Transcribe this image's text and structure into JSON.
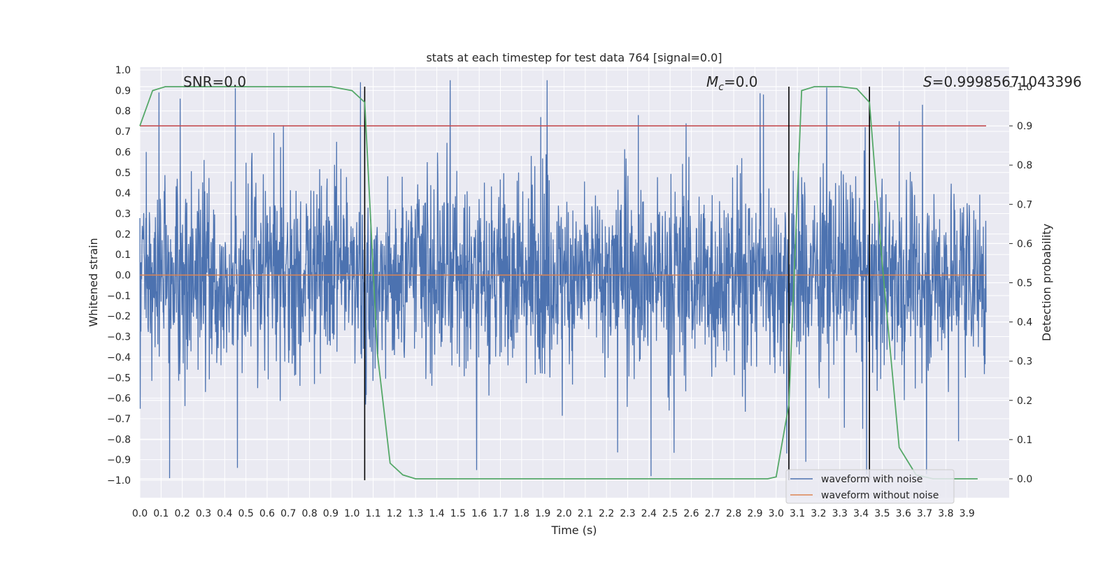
{
  "chart_data": {
    "type": "line",
    "title": "stats at each timestep for test data 764 [signal=0.0]",
    "xlabel": "Time (s)",
    "ylabel": "Whitened strain",
    "y2label": "Detection probability",
    "xlim": [
      0.0,
      3.99
    ],
    "ylim": [
      -1.09,
      1.0
    ],
    "y2lim": [
      -0.045,
      1.0
    ],
    "xticks": [
      0.0,
      0.1,
      0.2,
      0.3,
      0.4,
      0.5,
      0.6,
      0.7,
      0.8,
      0.9,
      1.0,
      1.1,
      1.2,
      1.3,
      1.4,
      1.5,
      1.6,
      1.7,
      1.8,
      1.9,
      2.0,
      2.1,
      2.2,
      2.3,
      2.4,
      2.5,
      2.6,
      2.7,
      2.8,
      2.9,
      3.0,
      3.1,
      3.2,
      3.3,
      3.4,
      3.5,
      3.6,
      3.7,
      3.8,
      3.9
    ],
    "yticks": [
      1.0,
      0.9,
      0.8,
      0.7,
      0.6,
      0.5,
      0.4,
      0.3,
      0.2,
      0.1,
      0.0,
      -0.1,
      -0.2,
      -0.3,
      -0.4,
      -0.5,
      -0.6,
      -0.7,
      -0.8,
      -0.9,
      -1.0
    ],
    "y2ticks": [
      1.0,
      0.9,
      0.8,
      0.7,
      0.6,
      0.5,
      0.4,
      0.3,
      0.2,
      0.1,
      0.0
    ],
    "annotations": {
      "snr": "SNR=0.0",
      "mc_symbol": "M",
      "mc_sub": "c",
      "mc_value": "=0.0",
      "s_symbol": "S",
      "s_value": "=0.99985671043396"
    },
    "threshold": {
      "value": 0.9,
      "axis": "detection probability",
      "color": "#c44e52"
    },
    "vertical_markers": [
      1.06,
      3.06,
      3.44
    ],
    "series": [
      {
        "name": "waveform with noise",
        "color": "#4c72b0",
        "description": "whitened noise, amplitude mostly within ±0.5 with spikes to ±1.0",
        "spikes": [
          {
            "t": 0.03,
            "v": 0.6
          },
          {
            "t": 0.09,
            "v": 0.89
          },
          {
            "t": 0.14,
            "v": -0.8
          },
          {
            "t": 0.14,
            "v": -0.99
          },
          {
            "t": 0.19,
            "v": 0.86
          },
          {
            "t": 0.45,
            "v": 0.91
          },
          {
            "t": 0.46,
            "v": -0.94
          },
          {
            "t": 1.04,
            "v": 0.94
          },
          {
            "t": 1.89,
            "v": 0.77
          },
          {
            "t": 2.35,
            "v": 0.78
          },
          {
            "t": 2.41,
            "v": -0.98
          },
          {
            "t": 2.94,
            "v": 0.88
          },
          {
            "t": 3.05,
            "v": -0.87
          },
          {
            "t": 3.14,
            "v": -0.91
          },
          {
            "t": 3.58,
            "v": 0.75
          },
          {
            "t": 3.69,
            "v": 0.83
          },
          {
            "t": 3.86,
            "v": -0.81
          }
        ]
      },
      {
        "name": "waveform without noise",
        "color": "#dd8452",
        "x": [
          0.0,
          3.99
        ],
        "y": [
          0.0,
          0.0
        ]
      },
      {
        "name": "detection probability",
        "color": "#55a868",
        "axis": "right",
        "x": [
          0.0,
          0.06,
          0.12,
          0.18,
          0.3,
          0.6,
          0.9,
          1.0,
          1.06,
          1.12,
          1.18,
          1.24,
          1.3,
          1.4,
          2.0,
          2.96,
          3.0,
          3.06,
          3.12,
          3.18,
          3.3,
          3.38,
          3.44,
          3.5,
          3.58,
          3.66,
          3.74,
          3.95
        ],
        "y": [
          0.9,
          0.99,
          1.0,
          1.0,
          1.0,
          1.0,
          1.0,
          0.99,
          0.96,
          0.32,
          0.04,
          0.01,
          0.0,
          0.0,
          0.0,
          0.0,
          0.005,
          0.19,
          0.99,
          1.0,
          1.0,
          0.995,
          0.96,
          0.55,
          0.08,
          0.01,
          0.0,
          0.0
        ]
      }
    ],
    "legend": {
      "position": "lower-right",
      "entries": [
        {
          "label": "waveform with noise",
          "color": "#4c72b0"
        },
        {
          "label": "waveform without noise",
          "color": "#dd8452"
        }
      ]
    }
  }
}
